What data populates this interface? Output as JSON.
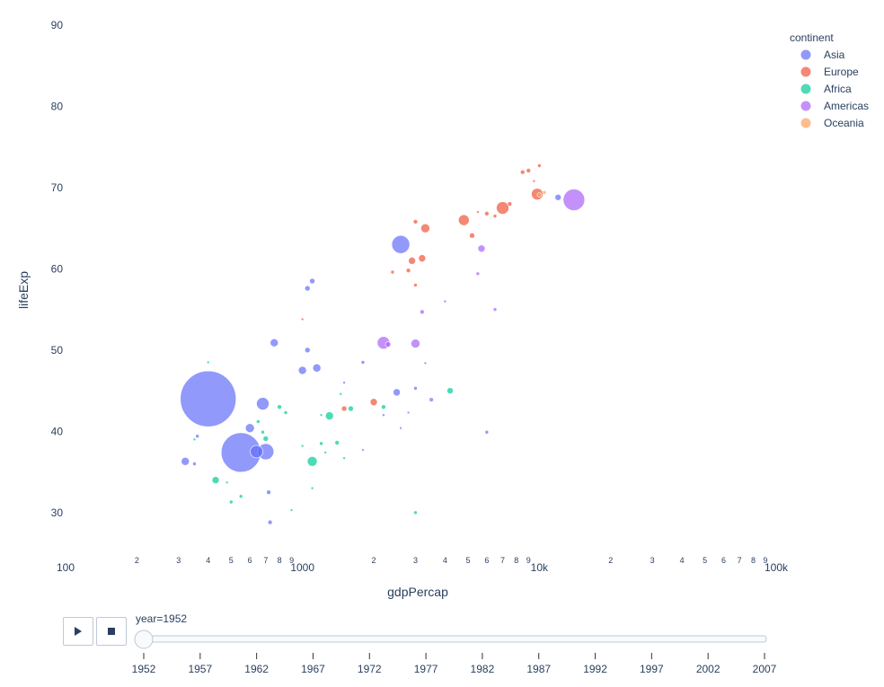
{
  "chart_data": {
    "type": "scatter",
    "x_scale": "log",
    "xlabel": "gdpPercap",
    "ylabel": "lifeExp",
    "xlim": [
      100,
      100000
    ],
    "ylim": [
      25,
      90
    ],
    "x_major_ticks": [
      {
        "v": 100,
        "label": "100"
      },
      {
        "v": 1000,
        "label": "1000"
      },
      {
        "v": 10000,
        "label": "10k"
      },
      {
        "v": 100000,
        "label": "100k"
      }
    ],
    "x_minor_ticks": [
      2,
      3,
      4,
      5,
      6,
      7,
      8,
      9
    ],
    "y_ticks": [
      30,
      40,
      50,
      60,
      70,
      80,
      90
    ],
    "legend": {
      "title": "continent",
      "placement": "top-right"
    },
    "series": [
      {
        "name": "Asia",
        "color": "#636efa",
        "points": [
          {
            "x": 400,
            "y": 44.0,
            "s": 31
          },
          {
            "x": 550,
            "y": 37.4,
            "s": 22
          },
          {
            "x": 2600,
            "y": 63.0,
            "s": 10
          },
          {
            "x": 700,
            "y": 37.5,
            "s": 9
          },
          {
            "x": 680,
            "y": 43.4,
            "s": 7
          },
          {
            "x": 640,
            "y": 37.5,
            "s": 7
          },
          {
            "x": 600,
            "y": 40.4,
            "s": 5
          },
          {
            "x": 760,
            "y": 50.9,
            "s": 4.5
          },
          {
            "x": 1000,
            "y": 47.5,
            "s": 4.5
          },
          {
            "x": 1150,
            "y": 47.8,
            "s": 4.5
          },
          {
            "x": 320,
            "y": 36.3,
            "s": 4.5
          },
          {
            "x": 2500,
            "y": 44.8,
            "s": 4
          },
          {
            "x": 1050,
            "y": 57.6,
            "s": 3
          },
          {
            "x": 1050,
            "y": 50.0,
            "s": 3
          },
          {
            "x": 1100,
            "y": 58.5,
            "s": 3
          },
          {
            "x": 720,
            "y": 32.5,
            "s": 2.5
          },
          {
            "x": 730,
            "y": 28.8,
            "s": 2.5
          },
          {
            "x": 350,
            "y": 36.0,
            "s": 2
          },
          {
            "x": 360,
            "y": 39.4,
            "s": 2
          },
          {
            "x": 1800,
            "y": 48.5,
            "s": 2
          },
          {
            "x": 3000,
            "y": 45.3,
            "s": 2
          },
          {
            "x": 6000,
            "y": 39.9,
            "s": 2
          },
          {
            "x": 12000,
            "y": 68.8,
            "s": 3.5
          },
          {
            "x": 4000,
            "y": 56.0,
            "s": 1.5
          },
          {
            "x": 2200,
            "y": 42.0,
            "s": 1.5
          },
          {
            "x": 1500,
            "y": 46.0,
            "s": 1.5
          }
        ]
      },
      {
        "name": "Europe",
        "color": "#ef553b",
        "points": [
          {
            "x": 7000,
            "y": 67.5,
            "s": 7
          },
          {
            "x": 9800,
            "y": 69.2,
            "s": 6.5
          },
          {
            "x": 4800,
            "y": 66.0,
            "s": 6
          },
          {
            "x": 3300,
            "y": 65.0,
            "s": 5
          },
          {
            "x": 2900,
            "y": 61.0,
            "s": 4
          },
          {
            "x": 3200,
            "y": 61.3,
            "s": 4
          },
          {
            "x": 5200,
            "y": 64.1,
            "s": 3
          },
          {
            "x": 2000,
            "y": 43.6,
            "s": 4
          },
          {
            "x": 1500,
            "y": 42.8,
            "s": 3
          },
          {
            "x": 2400,
            "y": 59.6,
            "s": 2
          },
          {
            "x": 2800,
            "y": 59.8,
            "s": 2.5
          },
          {
            "x": 3000,
            "y": 65.8,
            "s": 2.5
          },
          {
            "x": 6000,
            "y": 66.8,
            "s": 2.5
          },
          {
            "x": 7500,
            "y": 68.0,
            "s": 2.5
          },
          {
            "x": 8500,
            "y": 71.9,
            "s": 2.5
          },
          {
            "x": 9000,
            "y": 72.1,
            "s": 2.5
          },
          {
            "x": 10000,
            "y": 72.7,
            "s": 2
          },
          {
            "x": 6500,
            "y": 66.5,
            "s": 2
          },
          {
            "x": 3000,
            "y": 58.0,
            "s": 2
          },
          {
            "x": 1000,
            "y": 53.8,
            "s": 1.5
          },
          {
            "x": 9500,
            "y": 70.8,
            "s": 1.5
          },
          {
            "x": 5500,
            "y": 67.0,
            "s": 1.5
          }
        ]
      },
      {
        "name": "Africa",
        "color": "#00cc96",
        "points": [
          {
            "x": 1100,
            "y": 36.3,
            "s": 5.5
          },
          {
            "x": 1300,
            "y": 41.9,
            "s": 4.5
          },
          {
            "x": 4200,
            "y": 45.0,
            "s": 3.5
          },
          {
            "x": 430,
            "y": 34.0,
            "s": 4
          },
          {
            "x": 700,
            "y": 39.1,
            "s": 3
          },
          {
            "x": 800,
            "y": 43.0,
            "s": 2.5
          },
          {
            "x": 1200,
            "y": 38.5,
            "s": 2
          },
          {
            "x": 1400,
            "y": 38.6,
            "s": 2.5
          },
          {
            "x": 1600,
            "y": 42.8,
            "s": 3
          },
          {
            "x": 2200,
            "y": 43.0,
            "s": 2.5
          },
          {
            "x": 500,
            "y": 31.3,
            "s": 2
          },
          {
            "x": 550,
            "y": 32.0,
            "s": 2
          },
          {
            "x": 650,
            "y": 41.2,
            "s": 2
          },
          {
            "x": 850,
            "y": 42.3,
            "s": 2
          },
          {
            "x": 1000,
            "y": 38.2,
            "s": 1.5
          },
          {
            "x": 1100,
            "y": 33.0,
            "s": 1.5
          },
          {
            "x": 1200,
            "y": 42.0,
            "s": 1.5
          },
          {
            "x": 3000,
            "y": 30.0,
            "s": 2
          },
          {
            "x": 400,
            "y": 48.5,
            "s": 1.5
          },
          {
            "x": 350,
            "y": 39.0,
            "s": 1.5
          },
          {
            "x": 480,
            "y": 33.7,
            "s": 1.5
          },
          {
            "x": 680,
            "y": 39.9,
            "s": 2
          },
          {
            "x": 1450,
            "y": 44.6,
            "s": 1.5
          },
          {
            "x": 1500,
            "y": 36.7,
            "s": 1.5
          },
          {
            "x": 900,
            "y": 30.3,
            "s": 1.5
          },
          {
            "x": 1250,
            "y": 37.4,
            "s": 1.5
          }
        ]
      },
      {
        "name": "Americas",
        "color": "#ab63fa",
        "points": [
          {
            "x": 14000,
            "y": 68.5,
            "s": 12
          },
          {
            "x": 2200,
            "y": 50.9,
            "s": 7
          },
          {
            "x": 3000,
            "y": 50.8,
            "s": 5
          },
          {
            "x": 5700,
            "y": 62.5,
            "s": 4
          },
          {
            "x": 3200,
            "y": 54.7,
            "s": 2.5
          },
          {
            "x": 3500,
            "y": 43.9,
            "s": 2.5
          },
          {
            "x": 5500,
            "y": 59.4,
            "s": 2
          },
          {
            "x": 6500,
            "y": 55.0,
            "s": 2
          },
          {
            "x": 2300,
            "y": 50.7,
            "s": 3
          },
          {
            "x": 3300,
            "y": 48.4,
            "s": 1.5
          },
          {
            "x": 2800,
            "y": 42.3,
            "s": 1.5
          },
          {
            "x": 1800,
            "y": 37.7,
            "s": 1.5
          },
          {
            "x": 2600,
            "y": 40.4,
            "s": 1.5
          }
        ]
      },
      {
        "name": "Oceania",
        "color": "#ffa15a",
        "points": [
          {
            "x": 10000,
            "y": 69.1,
            "s": 2.5
          },
          {
            "x": 10500,
            "y": 69.4,
            "s": 2
          }
        ]
      }
    ],
    "slider": {
      "label": "year=1952",
      "current": 1952,
      "steps": [
        "1952",
        "1957",
        "1962",
        "1967",
        "1972",
        "1977",
        "1982",
        "1987",
        "1992",
        "1997",
        "2002",
        "2007"
      ]
    }
  }
}
